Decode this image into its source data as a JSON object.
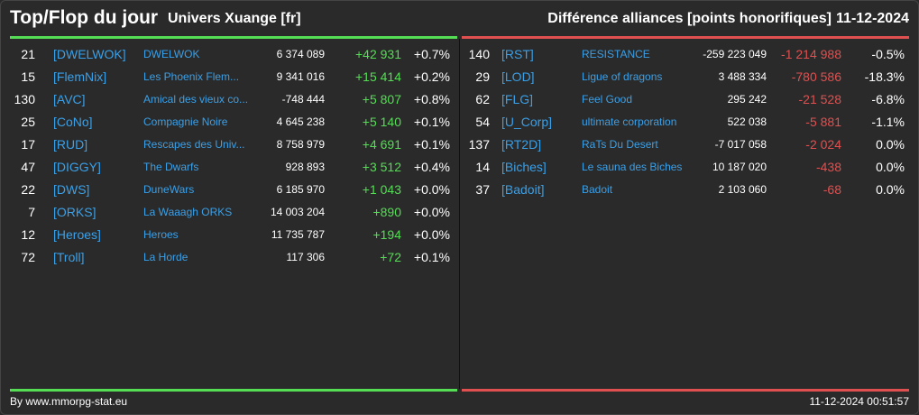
{
  "header": {
    "title": "Top/Flop du jour",
    "subtitle": "Univers Xuange [fr]",
    "right_title": "Différence alliances [points honorifiques]",
    "date": "11-12-2024"
  },
  "colors": {
    "positive": "#55dd55",
    "negative": "#e05050",
    "link": "#3aa0e8",
    "background": "#2a2a2a"
  },
  "top": [
    {
      "rank": "21",
      "tag": "[DWELWOK]",
      "name": "DWELWOK",
      "points": "6 374 089",
      "diff": "+42 931",
      "pct": "+0.7%"
    },
    {
      "rank": "15",
      "tag": "[FlemNix]",
      "name": "Les Phoenix Flem...",
      "points": "9 341 016",
      "diff": "+15 414",
      "pct": "+0.2%"
    },
    {
      "rank": "130",
      "tag": "[AVC]",
      "name": "Amical des vieux co...",
      "points": "-748 444",
      "diff": "+5 807",
      "pct": "+0.8%"
    },
    {
      "rank": "25",
      "tag": "[CoNo]",
      "name": "Compagnie Noire",
      "points": "4 645 238",
      "diff": "+5 140",
      "pct": "+0.1%"
    },
    {
      "rank": "17",
      "tag": "[RUD]",
      "name": "Rescapes des Univ...",
      "points": "8 758 979",
      "diff": "+4 691",
      "pct": "+0.1%"
    },
    {
      "rank": "47",
      "tag": "[DIGGY]",
      "name": "The Dwarfs",
      "points": "928 893",
      "diff": "+3 512",
      "pct": "+0.4%"
    },
    {
      "rank": "22",
      "tag": "[DWS]",
      "name": "DuneWars",
      "points": "6 185 970",
      "diff": "+1 043",
      "pct": "+0.0%"
    },
    {
      "rank": "7",
      "tag": "[ORKS]",
      "name": "La Waaagh ORKS",
      "points": "14 003 204",
      "diff": "+890",
      "pct": "+0.0%"
    },
    {
      "rank": "12",
      "tag": "[Heroes]",
      "name": "Heroes",
      "points": "11 735 787",
      "diff": "+194",
      "pct": "+0.0%"
    },
    {
      "rank": "72",
      "tag": "[Troll]",
      "name": "La Horde",
      "points": "117 306",
      "diff": "+72",
      "pct": "+0.1%"
    }
  ],
  "flop": [
    {
      "rank": "140",
      "tag": "[RST]",
      "name": "RESISTANCE",
      "points": "-259 223 049",
      "diff": "-1 214 988",
      "pct": "-0.5%"
    },
    {
      "rank": "29",
      "tag": "[LOD]",
      "name": "Ligue of dragons",
      "points": "3 488 334",
      "diff": "-780 586",
      "pct": "-18.3%"
    },
    {
      "rank": "62",
      "tag": "[FLG]",
      "name": "Feel Good",
      "points": "295 242",
      "diff": "-21 528",
      "pct": "-6.8%"
    },
    {
      "rank": "54",
      "tag": "[U_Corp]",
      "name": "ultimate corporation",
      "points": "522 038",
      "diff": "-5 881",
      "pct": "-1.1%"
    },
    {
      "rank": "137",
      "tag": "[RT2D]",
      "name": "RaTs Du Desert",
      "points": "-7 017 058",
      "diff": "-2 024",
      "pct": "0.0%"
    },
    {
      "rank": "14",
      "tag": "[Biches]",
      "name": "Le sauna des Biches",
      "points": "10 187 020",
      "diff": "-438",
      "pct": "0.0%"
    },
    {
      "rank": "37",
      "tag": "[Badoit]",
      "name": "Badoit",
      "points": "2 103 060",
      "diff": "-68",
      "pct": "0.0%"
    }
  ],
  "footer": {
    "source": "By www.mmorpg-stat.eu",
    "timestamp": "11-12-2024 00:51:57"
  }
}
